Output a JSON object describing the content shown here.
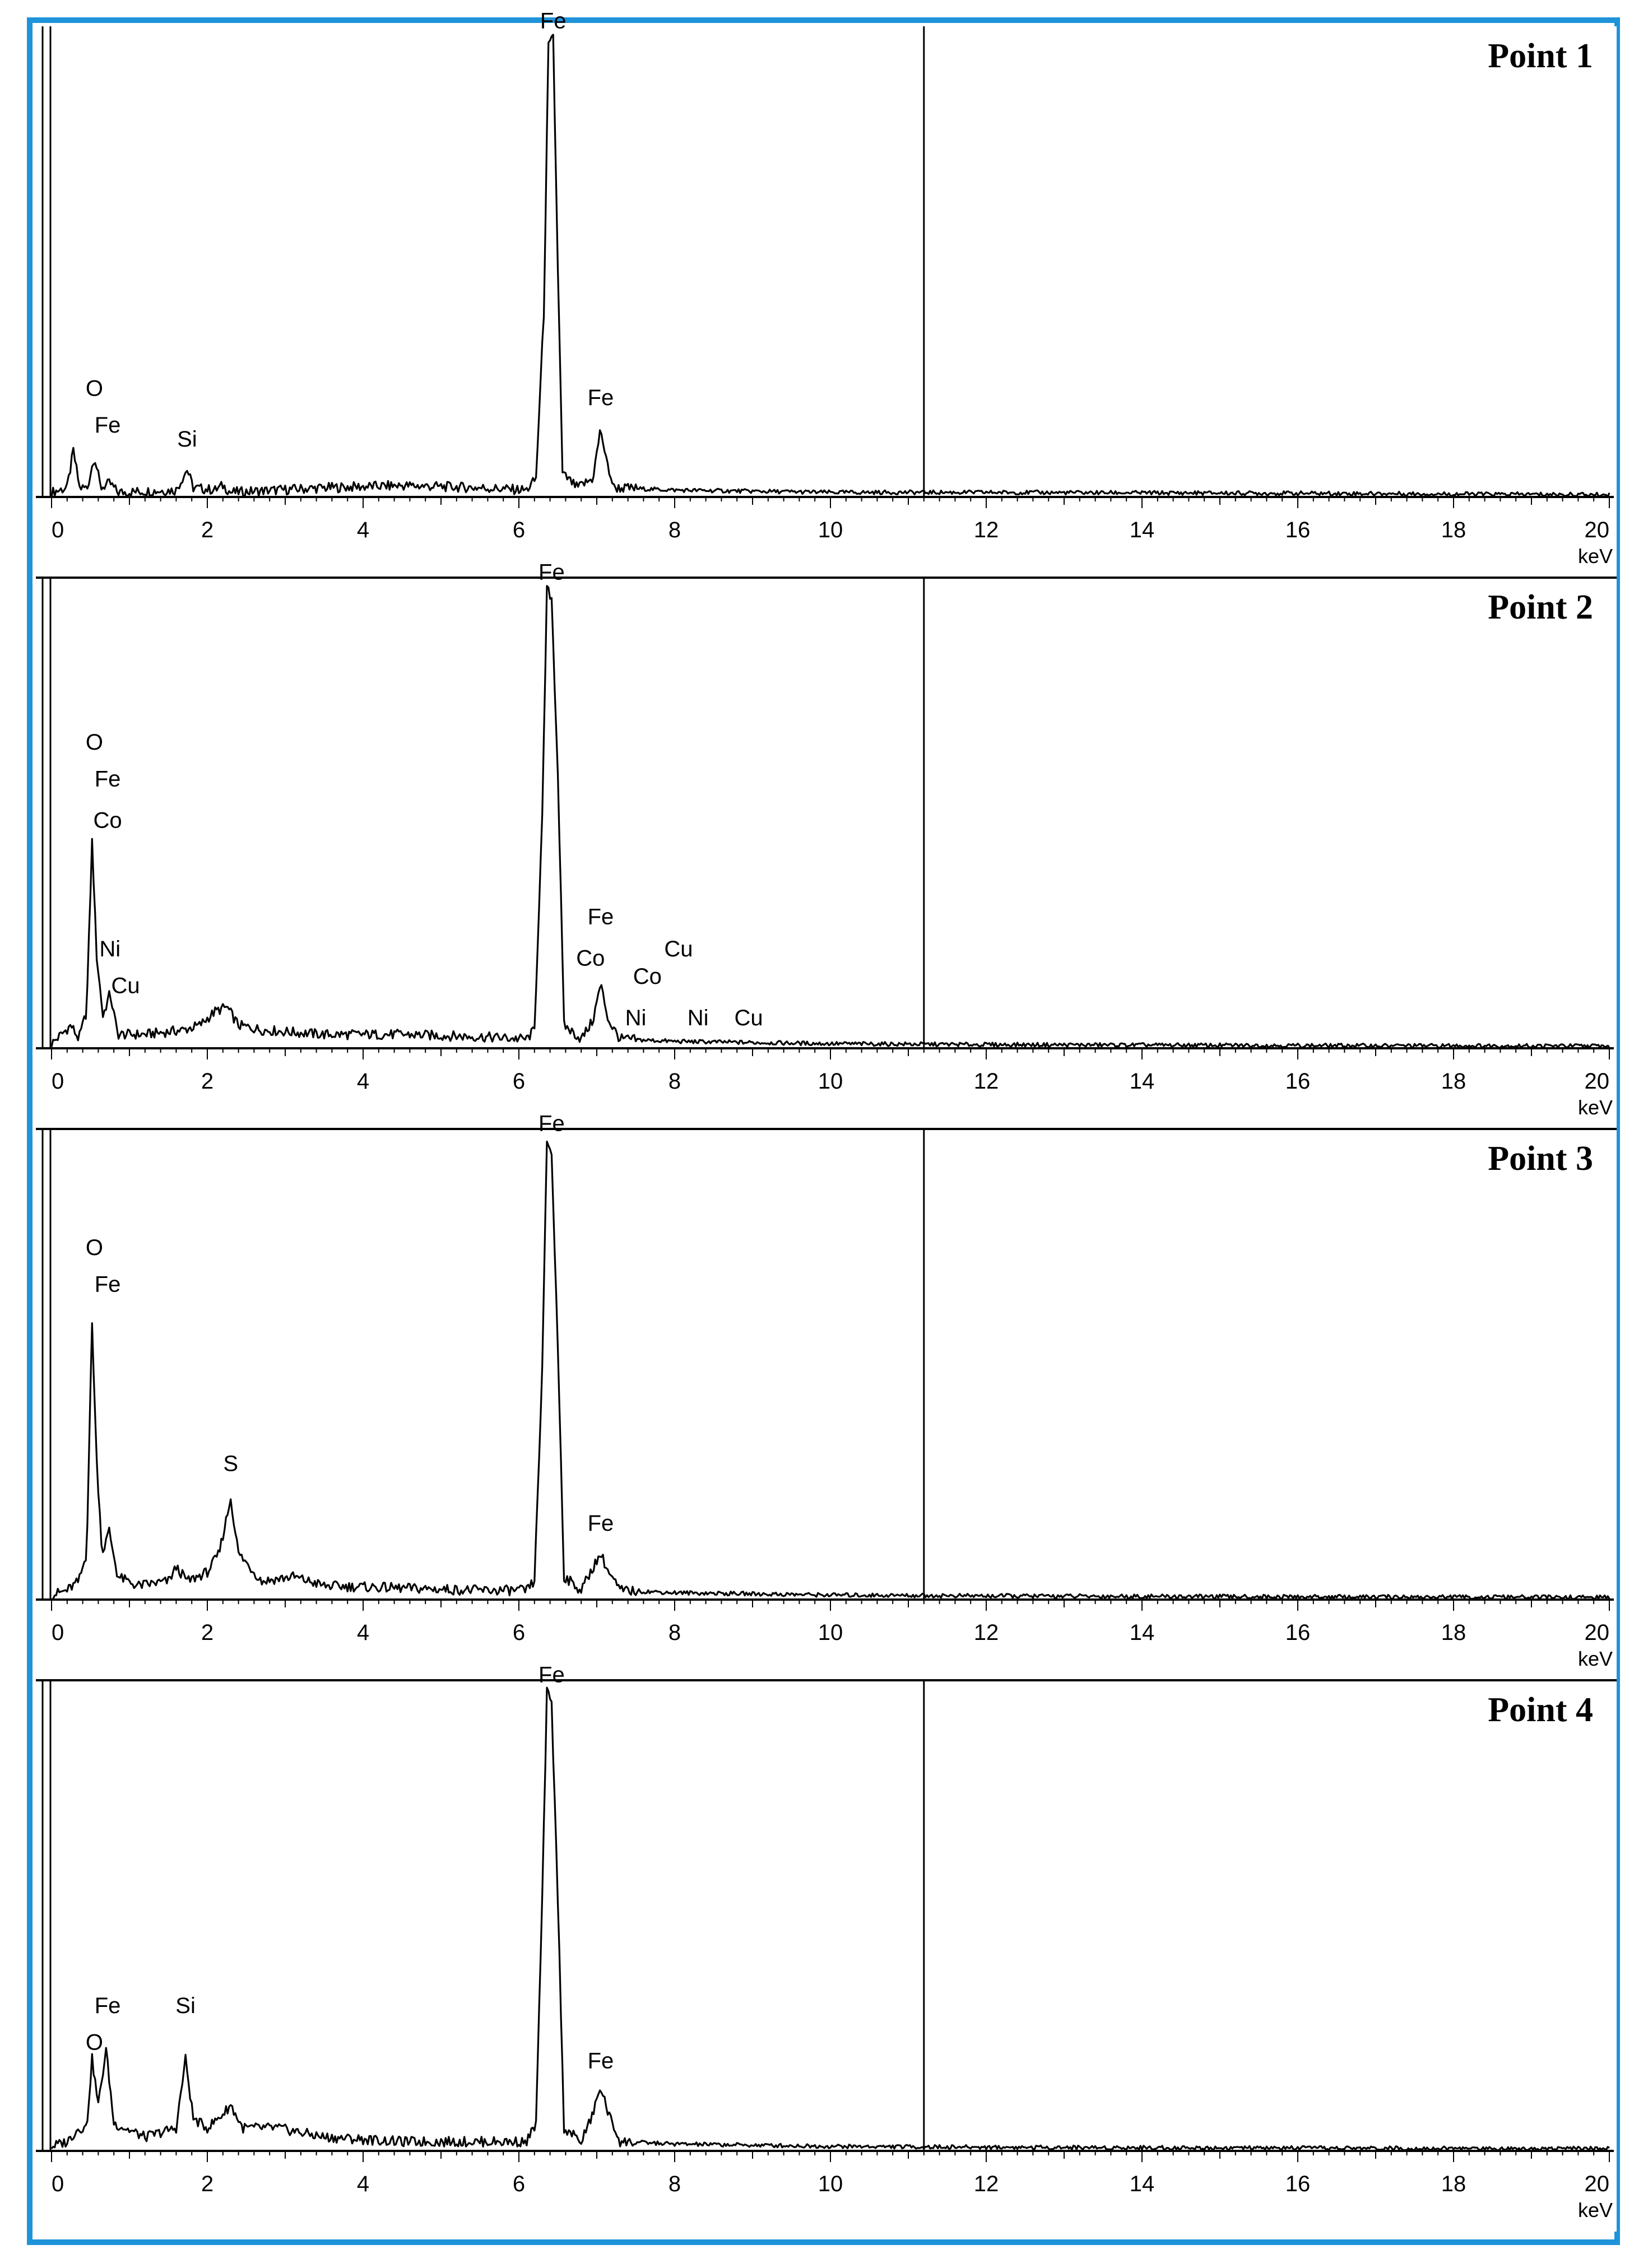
{
  "chart_data": [
    {
      "type": "line",
      "title": "Point 1",
      "xlabel": "keV",
      "ylabel": "",
      "xlim": [
        0,
        20
      ],
      "x_ticks": [
        0,
        2,
        4,
        6,
        8,
        10,
        12,
        14,
        16,
        18,
        20
      ],
      "grid": false,
      "marker_line_keV": 11.2,
      "spectrum": [
        [
          0,
          0.01
        ],
        [
          0.2,
          0.02
        ],
        [
          0.28,
          0.1
        ],
        [
          0.36,
          0.02
        ],
        [
          0.46,
          0.02
        ],
        [
          0.55,
          0.09
        ],
        [
          0.63,
          0.02
        ],
        [
          0.75,
          0.03
        ],
        [
          0.85,
          0.01
        ],
        [
          1.6,
          0.015
        ],
        [
          1.74,
          0.06
        ],
        [
          1.82,
          0.02
        ],
        [
          2.1,
          0.015
        ],
        [
          2.2,
          0.025
        ],
        [
          2.3,
          0.01
        ],
        [
          3.5,
          0.02
        ],
        [
          4.5,
          0.025
        ],
        [
          5.5,
          0.02
        ],
        [
          6.1,
          0.015
        ],
        [
          6.22,
          0.04
        ],
        [
          6.32,
          0.4
        ],
        [
          6.38,
          0.98
        ],
        [
          6.44,
          1.0
        ],
        [
          6.5,
          0.5
        ],
        [
          6.56,
          0.05
        ],
        [
          6.75,
          0.02
        ],
        [
          6.95,
          0.04
        ],
        [
          7.05,
          0.15
        ],
        [
          7.12,
          0.08
        ],
        [
          7.22,
          0.02
        ],
        [
          8,
          0.015
        ],
        [
          10,
          0.01
        ],
        [
          12,
          0.01
        ],
        [
          16,
          0.008
        ],
        [
          20,
          0.005
        ]
      ],
      "peak_labels": [
        {
          "text": "O",
          "x": 0.55,
          "y": 0.22
        },
        {
          "text": "Fe",
          "x": 0.72,
          "y": 0.14
        },
        {
          "text": "Si",
          "x": 1.74,
          "y": 0.11
        },
        {
          "text": "Fe",
          "x": 6.44,
          "y": 1.02
        },
        {
          "text": "Fe",
          "x": 7.05,
          "y": 0.2
        }
      ]
    },
    {
      "type": "line",
      "title": "Point 2",
      "xlabel": "keV",
      "ylabel": "",
      "xlim": [
        0,
        20
      ],
      "x_ticks": [
        0,
        2,
        4,
        6,
        8,
        10,
        12,
        14,
        16,
        18,
        20
      ],
      "grid": false,
      "marker_line_keV": 11.2,
      "spectrum": [
        [
          0,
          0.01
        ],
        [
          0.25,
          0.05
        ],
        [
          0.35,
          0.02
        ],
        [
          0.45,
          0.08
        ],
        [
          0.52,
          0.45
        ],
        [
          0.58,
          0.2
        ],
        [
          0.66,
          0.07
        ],
        [
          0.75,
          0.12
        ],
        [
          0.85,
          0.03
        ],
        [
          1.2,
          0.03
        ],
        [
          1.7,
          0.04
        ],
        [
          1.9,
          0.05
        ],
        [
          2.1,
          0.08
        ],
        [
          2.25,
          0.09
        ],
        [
          2.4,
          0.05
        ],
        [
          2.7,
          0.04
        ],
        [
          3.5,
          0.03
        ],
        [
          4.5,
          0.03
        ],
        [
          5.5,
          0.025
        ],
        [
          6.1,
          0.02
        ],
        [
          6.2,
          0.04
        ],
        [
          6.3,
          0.5
        ],
        [
          6.36,
          1.0
        ],
        [
          6.42,
          0.98
        ],
        [
          6.5,
          0.6
        ],
        [
          6.58,
          0.05
        ],
        [
          6.8,
          0.02
        ],
        [
          6.95,
          0.06
        ],
        [
          7.05,
          0.14
        ],
        [
          7.15,
          0.06
        ],
        [
          7.3,
          0.02
        ],
        [
          8,
          0.015
        ],
        [
          10,
          0.01
        ],
        [
          12,
          0.008
        ],
        [
          16,
          0.006
        ],
        [
          20,
          0.005
        ]
      ],
      "peak_labels": [
        {
          "text": "O",
          "x": 0.55,
          "y": 0.65
        },
        {
          "text": "Fe",
          "x": 0.72,
          "y": 0.57
        },
        {
          "text": "Co",
          "x": 0.72,
          "y": 0.48
        },
        {
          "text": "Ni",
          "x": 0.75,
          "y": 0.2
        },
        {
          "text": "Cu",
          "x": 0.95,
          "y": 0.12
        },
        {
          "text": "Fe",
          "x": 6.42,
          "y": 1.02
        },
        {
          "text": "Fe",
          "x": 7.05,
          "y": 0.27
        },
        {
          "text": "Co",
          "x": 6.92,
          "y": 0.18
        },
        {
          "text": "Co",
          "x": 7.65,
          "y": 0.14
        },
        {
          "text": "Cu",
          "x": 8.05,
          "y": 0.2
        },
        {
          "text": "Ni",
          "x": 7.5,
          "y": 0.05
        },
        {
          "text": "Ni",
          "x": 8.3,
          "y": 0.05
        },
        {
          "text": "Cu",
          "x": 8.95,
          "y": 0.05
        }
      ]
    },
    {
      "type": "line",
      "title": "Point 3",
      "xlabel": "keV",
      "ylabel": "",
      "xlim": [
        0,
        20
      ],
      "x_ticks": [
        0,
        2,
        4,
        6,
        8,
        10,
        12,
        14,
        16,
        18,
        20
      ],
      "grid": false,
      "marker_line_keV": 11.2,
      "spectrum": [
        [
          0,
          0.01
        ],
        [
          0.2,
          0.02
        ],
        [
          0.35,
          0.04
        ],
        [
          0.45,
          0.1
        ],
        [
          0.52,
          0.6
        ],
        [
          0.58,
          0.3
        ],
        [
          0.65,
          0.1
        ],
        [
          0.74,
          0.15
        ],
        [
          0.85,
          0.05
        ],
        [
          1.1,
          0.03
        ],
        [
          1.5,
          0.04
        ],
        [
          1.6,
          0.07
        ],
        [
          1.75,
          0.04
        ],
        [
          2.0,
          0.06
        ],
        [
          2.15,
          0.1
        ],
        [
          2.3,
          0.22
        ],
        [
          2.4,
          0.1
        ],
        [
          2.7,
          0.04
        ],
        [
          3.1,
          0.05
        ],
        [
          3.5,
          0.03
        ],
        [
          4.5,
          0.025
        ],
        [
          5.5,
          0.02
        ],
        [
          6.1,
          0.02
        ],
        [
          6.2,
          0.04
        ],
        [
          6.3,
          0.5
        ],
        [
          6.36,
          1.0
        ],
        [
          6.42,
          0.97
        ],
        [
          6.5,
          0.55
        ],
        [
          6.58,
          0.05
        ],
        [
          6.8,
          0.02
        ],
        [
          6.95,
          0.07
        ],
        [
          7.05,
          0.1
        ],
        [
          7.15,
          0.06
        ],
        [
          7.3,
          0.02
        ],
        [
          8,
          0.015
        ],
        [
          10,
          0.01
        ],
        [
          12,
          0.008
        ],
        [
          16,
          0.006
        ],
        [
          20,
          0.005
        ]
      ],
      "peak_labels": [
        {
          "text": "O",
          "x": 0.55,
          "y": 0.75
        },
        {
          "text": "Fe",
          "x": 0.72,
          "y": 0.67
        },
        {
          "text": "S",
          "x": 2.3,
          "y": 0.28
        },
        {
          "text": "Fe",
          "x": 6.42,
          "y": 1.02
        },
        {
          "text": "Fe",
          "x": 7.05,
          "y": 0.15
        }
      ]
    },
    {
      "type": "line",
      "title": "Point 4",
      "xlabel": "keV",
      "ylabel": "",
      "xlim": [
        0,
        20
      ],
      "x_ticks": [
        0,
        2,
        4,
        6,
        8,
        10,
        12,
        14,
        16,
        18,
        20
      ],
      "grid": false,
      "marker_line_keV": 11.2,
      "spectrum": [
        [
          0,
          0.01
        ],
        [
          0.2,
          0.02
        ],
        [
          0.35,
          0.05
        ],
        [
          0.45,
          0.05
        ],
        [
          0.52,
          0.2
        ],
        [
          0.6,
          0.1
        ],
        [
          0.7,
          0.22
        ],
        [
          0.8,
          0.06
        ],
        [
          1.2,
          0.03
        ],
        [
          1.6,
          0.05
        ],
        [
          1.72,
          0.2
        ],
        [
          1.82,
          0.07
        ],
        [
          2.0,
          0.05
        ],
        [
          2.2,
          0.08
        ],
        [
          2.3,
          0.1
        ],
        [
          2.45,
          0.05
        ],
        [
          2.9,
          0.05
        ],
        [
          3.5,
          0.03
        ],
        [
          4.5,
          0.02
        ],
        [
          5.5,
          0.02
        ],
        [
          6.1,
          0.02
        ],
        [
          6.22,
          0.06
        ],
        [
          6.3,
          0.55
        ],
        [
          6.36,
          1.0
        ],
        [
          6.42,
          0.97
        ],
        [
          6.5,
          0.55
        ],
        [
          6.58,
          0.05
        ],
        [
          6.8,
          0.02
        ],
        [
          6.95,
          0.08
        ],
        [
          7.05,
          0.14
        ],
        [
          7.15,
          0.08
        ],
        [
          7.3,
          0.02
        ],
        [
          8,
          0.015
        ],
        [
          10,
          0.01
        ],
        [
          12,
          0.008
        ],
        [
          16,
          0.006
        ],
        [
          20,
          0.005
        ]
      ],
      "peak_labels": [
        {
          "text": "Fe",
          "x": 0.72,
          "y": 0.3
        },
        {
          "text": "Si",
          "x": 1.72,
          "y": 0.3
        },
        {
          "text": "O",
          "x": 0.55,
          "y": 0.22
        },
        {
          "text": "Fe",
          "x": 6.42,
          "y": 1.02
        },
        {
          "text": "Fe",
          "x": 7.05,
          "y": 0.18
        }
      ]
    }
  ]
}
